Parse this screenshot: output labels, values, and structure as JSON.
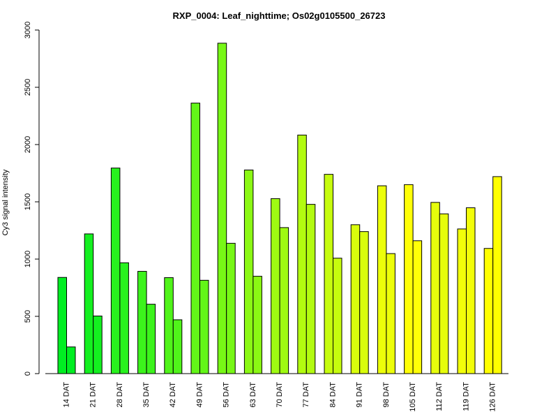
{
  "chart_data": {
    "type": "bar",
    "title": "RXP_0004: Leaf_nighttime; Os02g0105500_26723",
    "xlabel": "",
    "ylabel": "Cy3 signal intensity",
    "ylim": [
      0,
      3000
    ],
    "yticks": [
      0,
      500,
      1000,
      1500,
      2000,
      2500,
      3000
    ],
    "grid": false,
    "legend": "none",
    "categories": [
      "14 DAT",
      "21 DAT",
      "28 DAT",
      "35 DAT",
      "42 DAT",
      "49 DAT",
      "56 DAT",
      "63 DAT",
      "70 DAT",
      "77 DAT",
      "84 DAT",
      "91 DAT",
      "98 DAT",
      "105 DAT",
      "112 DAT",
      "119 DAT",
      "126 DAT"
    ],
    "series": [
      {
        "values": [
          840,
          1220,
          1795,
          893,
          838,
          2362,
          2885,
          1778,
          1528,
          2083,
          1740,
          1300,
          1640,
          1650,
          1495,
          1263,
          1093
        ]
      },
      {
        "values": [
          233,
          503,
          968,
          606,
          470,
          815,
          1138,
          850,
          1275,
          1478,
          1008,
          1240,
          1048,
          1160,
          1395,
          1448,
          1720
        ]
      }
    ],
    "group_colors": [
      "#00ee22",
      "#14f020",
      "#28f21e",
      "#3cf31c",
      "#50f41a",
      "#63f618",
      "#77f716",
      "#8bf814",
      "#9ffa12",
      "#b2fb10",
      "#c6fc0e",
      "#d9fd0c",
      "#ecfe0a",
      "#ffff08",
      "#e6fd0c",
      "#f2fe0a",
      "#ffff00"
    ]
  }
}
